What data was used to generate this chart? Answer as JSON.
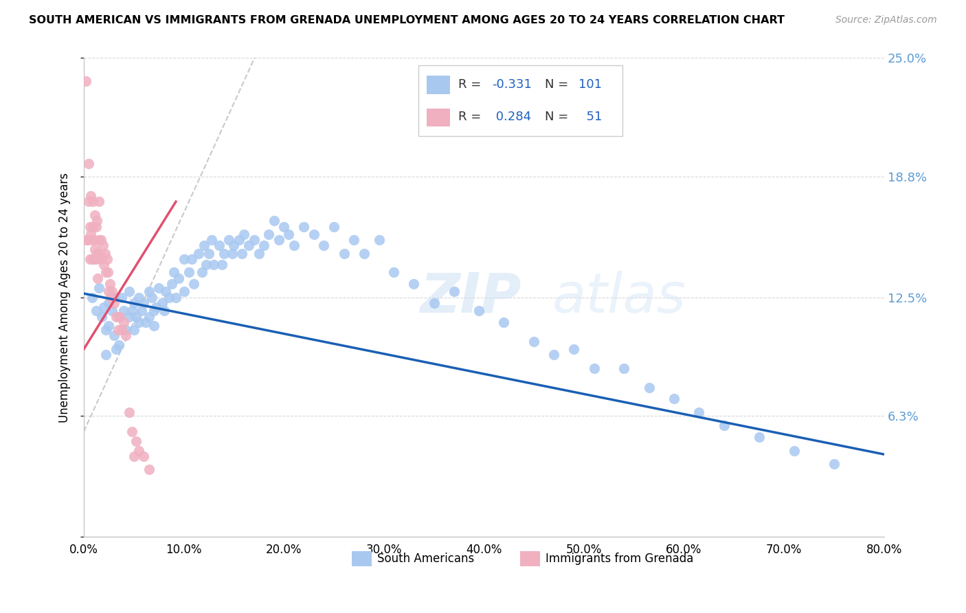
{
  "title": "SOUTH AMERICAN VS IMMIGRANTS FROM GRENADA UNEMPLOYMENT AMONG AGES 20 TO 24 YEARS CORRELATION CHART",
  "source": "Source: ZipAtlas.com",
  "ylabel": "Unemployment Among Ages 20 to 24 years",
  "xlim": [
    0.0,
    0.8
  ],
  "ylim": [
    0.0,
    0.25
  ],
  "ytick_positions": [
    0.0,
    0.063,
    0.125,
    0.188,
    0.25
  ],
  "ytick_labels": [
    "",
    "6.3%",
    "12.5%",
    "18.8%",
    "25.0%"
  ],
  "xtick_positions": [
    0.0,
    0.1,
    0.2,
    0.3,
    0.4,
    0.5,
    0.6,
    0.7,
    0.8
  ],
  "xtick_labels": [
    "0.0%",
    "10.0%",
    "20.0%",
    "30.0%",
    "40.0%",
    "50.0%",
    "60.0%",
    "70.0%",
    "80.0%"
  ],
  "background_color": "#ffffff",
  "watermark": "ZIPatlas",
  "blue_color": "#a8c8f0",
  "pink_color": "#f0b0c0",
  "trend_blue": "#1a5fb4",
  "trend_pink": "#e05070",
  "trend_gray_dashed": "#c8c8d0",
  "legend_R1": "-0.331",
  "legend_N1": "101",
  "legend_R2": "0.284",
  "legend_N2": "51",
  "blue_trend_x": [
    0.0,
    0.8
  ],
  "blue_trend_y": [
    0.127,
    0.043
  ],
  "pink_trend_x": [
    0.0,
    0.092
  ],
  "pink_trend_y": [
    0.098,
    0.175
  ],
  "gray_trend_x": [
    0.0,
    0.175
  ],
  "gray_trend_y": [
    0.055,
    0.255
  ],
  "blue_x": [
    0.008,
    0.012,
    0.015,
    0.018,
    0.02,
    0.022,
    0.022,
    0.025,
    0.025,
    0.028,
    0.03,
    0.03,
    0.032,
    0.035,
    0.035,
    0.038,
    0.04,
    0.042,
    0.045,
    0.045,
    0.048,
    0.05,
    0.05,
    0.052,
    0.055,
    0.055,
    0.058,
    0.06,
    0.062,
    0.065,
    0.065,
    0.068,
    0.07,
    0.07,
    0.072,
    0.075,
    0.078,
    0.08,
    0.082,
    0.085,
    0.088,
    0.09,
    0.092,
    0.095,
    0.1,
    0.1,
    0.105,
    0.108,
    0.11,
    0.115,
    0.118,
    0.12,
    0.122,
    0.125,
    0.128,
    0.13,
    0.135,
    0.138,
    0.14,
    0.145,
    0.148,
    0.15,
    0.155,
    0.158,
    0.16,
    0.165,
    0.17,
    0.175,
    0.18,
    0.185,
    0.19,
    0.195,
    0.2,
    0.205,
    0.21,
    0.22,
    0.23,
    0.24,
    0.25,
    0.26,
    0.27,
    0.28,
    0.295,
    0.31,
    0.33,
    0.35,
    0.37,
    0.395,
    0.42,
    0.45,
    0.47,
    0.49,
    0.51,
    0.54,
    0.565,
    0.59,
    0.615,
    0.64,
    0.675,
    0.71,
    0.75
  ],
  "blue_y": [
    0.125,
    0.118,
    0.13,
    0.115,
    0.12,
    0.108,
    0.095,
    0.122,
    0.11,
    0.118,
    0.125,
    0.105,
    0.098,
    0.115,
    0.1,
    0.125,
    0.118,
    0.108,
    0.128,
    0.115,
    0.118,
    0.122,
    0.108,
    0.115,
    0.125,
    0.112,
    0.118,
    0.122,
    0.112,
    0.128,
    0.115,
    0.125,
    0.118,
    0.11,
    0.12,
    0.13,
    0.122,
    0.118,
    0.128,
    0.125,
    0.132,
    0.138,
    0.125,
    0.135,
    0.145,
    0.128,
    0.138,
    0.145,
    0.132,
    0.148,
    0.138,
    0.152,
    0.142,
    0.148,
    0.155,
    0.142,
    0.152,
    0.142,
    0.148,
    0.155,
    0.148,
    0.152,
    0.155,
    0.148,
    0.158,
    0.152,
    0.155,
    0.148,
    0.152,
    0.158,
    0.165,
    0.155,
    0.162,
    0.158,
    0.152,
    0.162,
    0.158,
    0.152,
    0.162,
    0.148,
    0.155,
    0.148,
    0.155,
    0.138,
    0.132,
    0.122,
    0.128,
    0.118,
    0.112,
    0.102,
    0.095,
    0.098,
    0.088,
    0.088,
    0.078,
    0.072,
    0.065,
    0.058,
    0.052,
    0.045,
    0.038
  ],
  "pink_x": [
    0.002,
    0.003,
    0.004,
    0.005,
    0.005,
    0.006,
    0.006,
    0.007,
    0.007,
    0.008,
    0.008,
    0.009,
    0.009,
    0.01,
    0.01,
    0.011,
    0.011,
    0.012,
    0.012,
    0.013,
    0.013,
    0.014,
    0.015,
    0.015,
    0.016,
    0.017,
    0.018,
    0.019,
    0.02,
    0.021,
    0.022,
    0.023,
    0.024,
    0.025,
    0.026,
    0.027,
    0.028,
    0.03,
    0.032,
    0.034,
    0.036,
    0.038,
    0.04,
    0.042,
    0.045,
    0.048,
    0.05,
    0.052,
    0.055,
    0.06,
    0.065
  ],
  "pink_y": [
    0.238,
    0.155,
    0.155,
    0.175,
    0.195,
    0.145,
    0.162,
    0.158,
    0.178,
    0.155,
    0.145,
    0.162,
    0.175,
    0.155,
    0.145,
    0.168,
    0.15,
    0.162,
    0.145,
    0.165,
    0.148,
    0.135,
    0.175,
    0.155,
    0.148,
    0.155,
    0.145,
    0.152,
    0.142,
    0.148,
    0.138,
    0.145,
    0.138,
    0.128,
    0.132,
    0.125,
    0.128,
    0.122,
    0.115,
    0.108,
    0.115,
    0.108,
    0.112,
    0.105,
    0.065,
    0.055,
    0.042,
    0.05,
    0.045,
    0.042,
    0.035
  ]
}
